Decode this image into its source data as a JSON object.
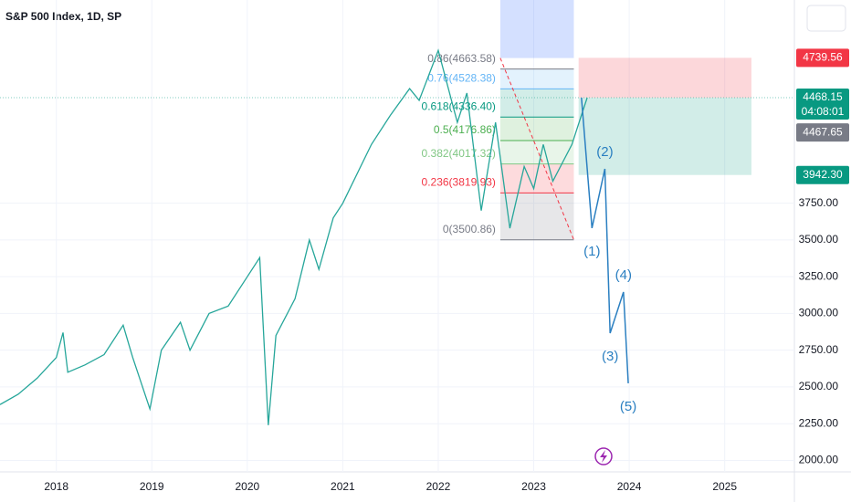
{
  "chart_data": {
    "type": "line",
    "title": "S&P 500 Index, 1D, SP",
    "color": "#26a69a",
    "x": [
      2017.41,
      2017.6,
      2017.8,
      2018.0,
      2018.07,
      2018.12,
      2018.3,
      2018.5,
      2018.7,
      2018.8,
      2018.98,
      2019.1,
      2019.3,
      2019.4,
      2019.6,
      2019.8,
      2020.0,
      2020.13,
      2020.22,
      2020.3,
      2020.5,
      2020.65,
      2020.75,
      2020.9,
      2021.0,
      2021.3,
      2021.5,
      2021.7,
      2021.8,
      2022.0,
      2022.2,
      2022.3,
      2022.45,
      2022.6,
      2022.75,
      2022.9,
      2023.0,
      2023.1,
      2023.2,
      2023.4,
      2023.5,
      2023.56
    ],
    "values": [
      2380,
      2450,
      2560,
      2700,
      2870,
      2600,
      2650,
      2720,
      2920,
      2700,
      2350,
      2750,
      2940,
      2750,
      3000,
      3050,
      3250,
      3380,
      2240,
      2850,
      3100,
      3500,
      3300,
      3650,
      3750,
      4150,
      4350,
      4530,
      4450,
      4790,
      4300,
      4500,
      3700,
      4300,
      3580,
      4000,
      3850,
      4150,
      3900,
      4150,
      4350,
      4468.15
    ],
    "xlim": [
      2017.41,
      2025.73
    ],
    "ylim": [
      1922,
      5133
    ],
    "xticks": [
      2018,
      2019,
      2020,
      2021,
      2022,
      2023,
      2024,
      2025
    ],
    "yticks": [
      {
        "value": 2000,
        "label": "2000.00"
      },
      {
        "value": 2250,
        "label": "2250.00"
      },
      {
        "value": 2500,
        "label": "2500.00"
      },
      {
        "value": 2750,
        "label": "2750.00"
      },
      {
        "value": 3000,
        "label": "3000.00"
      },
      {
        "value": 3250,
        "label": "3250.00"
      },
      {
        "value": 3500,
        "label": "3500.00"
      },
      {
        "value": 3750,
        "label": "3750.00"
      }
    ],
    "grid": true,
    "fib": {
      "x": [
        2022.65,
        2023.42
      ],
      "levels": [
        {
          "label": "0.86(4663.58)",
          "value": 4663.58,
          "color": "#787b86"
        },
        {
          "label": "0.76(4528.38)",
          "value": 4528.38,
          "color": "#64b5f6"
        },
        {
          "label": "0.618(4336.40)",
          "value": 4336.4,
          "color": "#089981"
        },
        {
          "label": "0.5(4176.86)",
          "value": 4176.86,
          "color": "#4caf50"
        },
        {
          "label": "0.382(4017.32)",
          "value": 4017.32,
          "color": "#81c784"
        },
        {
          "label": "0.236(3819.93)",
          "value": 3819.93,
          "color": "#f23645"
        },
        {
          "label": "0(3500.86)",
          "value": 3500.86,
          "color": "#787b86"
        }
      ]
    },
    "position_x": [
      2023.47,
      2025.28
    ],
    "price_labels": [
      {
        "value": 4739.56,
        "color": "#f23645"
      },
      {
        "value": 4468.15,
        "color": "#089981",
        "countdown": "04:08:01"
      },
      {
        "value": 4467.65,
        "color": "#787b86"
      },
      {
        "value": 3942.3,
        "label": "3942.30",
        "color": "#089981"
      }
    ],
    "projection": {
      "color": "#2a7fc1",
      "x": [
        2023.5,
        2023.61,
        2023.745,
        2023.8,
        2023.94,
        2023.99
      ],
      "values": [
        4468.15,
        3581,
        3984,
        2866,
        3146,
        2525
      ],
      "labels": [
        null,
        "(1)",
        "(2)",
        "(3)",
        "(4)",
        "(5)"
      ]
    }
  }
}
